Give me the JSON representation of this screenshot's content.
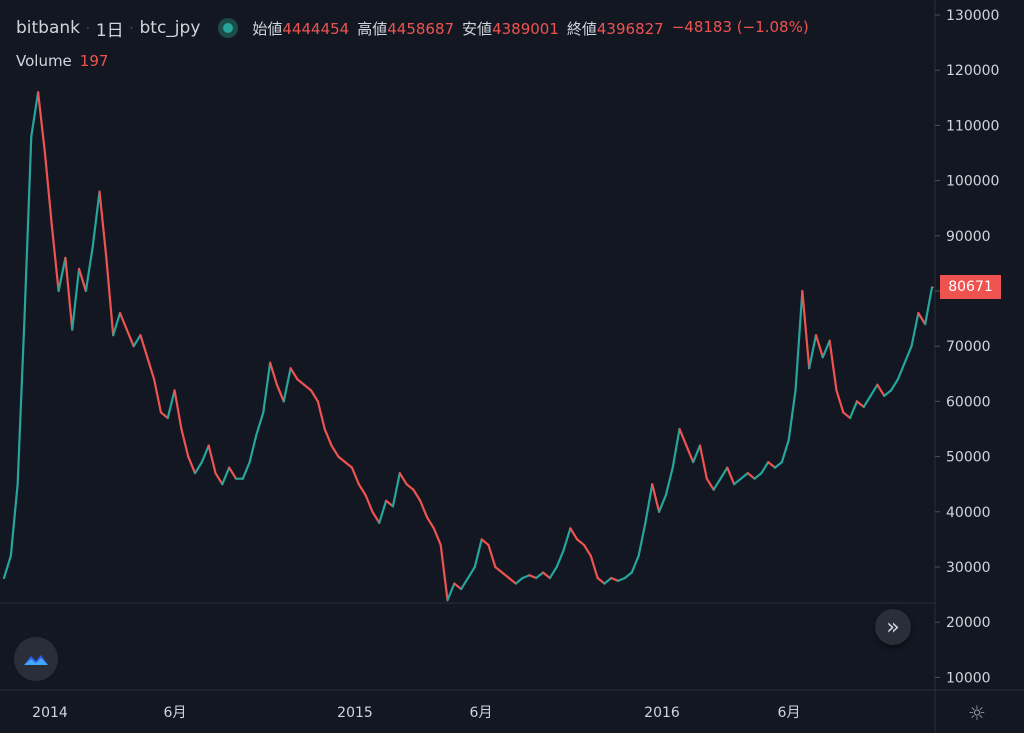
{
  "header": {
    "exchange": "bitbank",
    "interval": "1日",
    "pair": "btc_jpy",
    "separator": "·",
    "open_label": "始値",
    "open_value": "4444454",
    "high_label": "高値",
    "high_value": "4458687",
    "low_label": "安値",
    "low_value": "4389001",
    "close_label": "終値",
    "close_value": "4396827",
    "change": "−48183 (−1.08%)"
  },
  "volume": {
    "label": "Volume",
    "value": "197"
  },
  "last_price_tag": "80671",
  "icons": {
    "status": "status-dot-icon",
    "scroll": "double-chevron-right-icon",
    "logo": "tradingview-cloud-icon",
    "settings": "gear-icon"
  },
  "colors": {
    "background": "#131722",
    "up": "#26a69a",
    "down": "#ef5350",
    "axis_text": "#d1d4dc"
  },
  "chart_data": {
    "type": "line",
    "title": "",
    "xlabel": "",
    "ylabel": "",
    "ylim": [
      8000,
      132000
    ],
    "y_ticks": [
      "130000",
      "120000",
      "110000",
      "100000",
      "90000",
      "80000",
      "70000",
      "60000",
      "50000",
      "40000",
      "30000",
      "20000",
      "10000"
    ],
    "x_ticks": [
      "2014",
      "6月",
      "2015",
      "6月",
      "2016",
      "6月"
    ],
    "grid": false,
    "series": [
      {
        "values": [
          [
            0,
            28000
          ],
          [
            2,
            32000
          ],
          [
            4,
            45000
          ],
          [
            6,
            75000
          ],
          [
            8,
            108000
          ],
          [
            10,
            116000
          ],
          [
            12,
            105000
          ],
          [
            14,
            92000
          ],
          [
            16,
            80000
          ],
          [
            18,
            86000
          ],
          [
            20,
            73000
          ],
          [
            22,
            84000
          ],
          [
            24,
            80000
          ],
          [
            26,
            88000
          ],
          [
            28,
            98000
          ],
          [
            30,
            86000
          ],
          [
            32,
            72000
          ],
          [
            34,
            76000
          ],
          [
            36,
            73000
          ],
          [
            38,
            70000
          ],
          [
            40,
            72000
          ],
          [
            42,
            68000
          ],
          [
            44,
            64000
          ],
          [
            46,
            58000
          ],
          [
            48,
            57000
          ],
          [
            50,
            62000
          ],
          [
            52,
            55000
          ],
          [
            54,
            50000
          ],
          [
            56,
            47000
          ],
          [
            58,
            49000
          ],
          [
            60,
            52000
          ],
          [
            62,
            47000
          ],
          [
            64,
            45000
          ],
          [
            66,
            48000
          ],
          [
            68,
            46000
          ],
          [
            70,
            46000
          ],
          [
            72,
            49000
          ],
          [
            74,
            54000
          ],
          [
            76,
            58000
          ],
          [
            78,
            67000
          ],
          [
            80,
            63000
          ],
          [
            82,
            60000
          ],
          [
            84,
            66000
          ],
          [
            86,
            64000
          ],
          [
            88,
            63000
          ],
          [
            90,
            62000
          ],
          [
            92,
            60000
          ],
          [
            94,
            55000
          ],
          [
            96,
            52000
          ],
          [
            98,
            50000
          ],
          [
            100,
            49000
          ],
          [
            102,
            48000
          ],
          [
            104,
            45000
          ],
          [
            106,
            43000
          ],
          [
            108,
            40000
          ],
          [
            110,
            38000
          ],
          [
            112,
            42000
          ],
          [
            114,
            41000
          ],
          [
            116,
            47000
          ],
          [
            118,
            45000
          ],
          [
            120,
            44000
          ],
          [
            122,
            42000
          ],
          [
            124,
            39000
          ],
          [
            126,
            37000
          ],
          [
            128,
            34000
          ],
          [
            130,
            24000
          ],
          [
            132,
            27000
          ],
          [
            134,
            26000
          ],
          [
            136,
            28000
          ],
          [
            138,
            30000
          ],
          [
            140,
            35000
          ],
          [
            142,
            34000
          ],
          [
            144,
            30000
          ],
          [
            146,
            29000
          ],
          [
            148,
            28000
          ],
          [
            150,
            27000
          ],
          [
            152,
            28000
          ],
          [
            154,
            28500
          ],
          [
            156,
            28000
          ],
          [
            158,
            29000
          ],
          [
            160,
            28000
          ],
          [
            162,
            30000
          ],
          [
            164,
            33000
          ],
          [
            166,
            37000
          ],
          [
            168,
            35000
          ],
          [
            170,
            34000
          ],
          [
            172,
            32000
          ],
          [
            174,
            28000
          ],
          [
            176,
            27000
          ],
          [
            178,
            28000
          ],
          [
            180,
            27500
          ],
          [
            182,
            28000
          ],
          [
            184,
            29000
          ],
          [
            186,
            32000
          ],
          [
            188,
            38000
          ],
          [
            190,
            45000
          ],
          [
            192,
            40000
          ],
          [
            194,
            43000
          ],
          [
            196,
            48000
          ],
          [
            198,
            55000
          ],
          [
            200,
            52000
          ],
          [
            202,
            49000
          ],
          [
            204,
            52000
          ],
          [
            206,
            46000
          ],
          [
            208,
            44000
          ],
          [
            210,
            46000
          ],
          [
            212,
            48000
          ],
          [
            214,
            45000
          ],
          [
            216,
            46000
          ],
          [
            218,
            47000
          ],
          [
            220,
            46000
          ],
          [
            222,
            47000
          ],
          [
            224,
            49000
          ],
          [
            226,
            48000
          ],
          [
            228,
            49000
          ],
          [
            230,
            53000
          ],
          [
            232,
            62000
          ],
          [
            234,
            80000
          ],
          [
            236,
            66000
          ],
          [
            238,
            72000
          ],
          [
            240,
            68000
          ],
          [
            242,
            71000
          ],
          [
            244,
            62000
          ],
          [
            246,
            58000
          ],
          [
            248,
            57000
          ],
          [
            250,
            60000
          ],
          [
            252,
            59000
          ],
          [
            254,
            61000
          ],
          [
            256,
            63000
          ],
          [
            258,
            61000
          ],
          [
            260,
            62000
          ],
          [
            262,
            64000
          ],
          [
            264,
            67000
          ],
          [
            266,
            70000
          ],
          [
            268,
            76000
          ],
          [
            270,
            74000
          ],
          [
            272,
            80671
          ]
        ]
      }
    ]
  }
}
